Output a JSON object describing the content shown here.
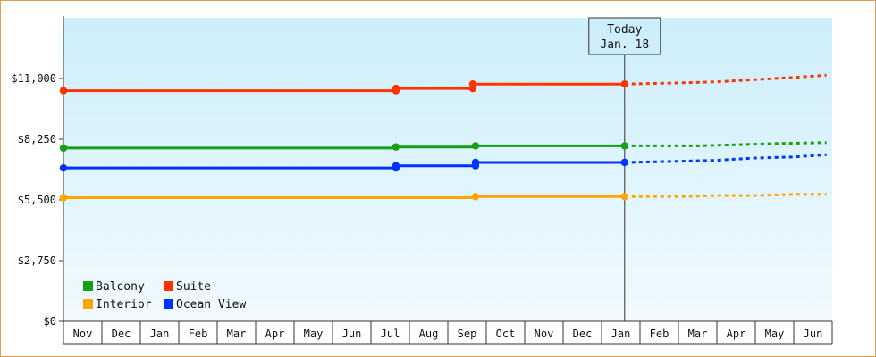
{
  "chart_data": {
    "type": "line",
    "ylim": [
      0,
      13750
    ],
    "y_ticks": [
      {
        "value": 0,
        "label": "$0"
      },
      {
        "value": 2750,
        "label": "$2,750"
      },
      {
        "value": 5500,
        "label": "$5,500"
      },
      {
        "value": 8250,
        "label": "$8,250"
      },
      {
        "value": 11000,
        "label": "$11,000"
      }
    ],
    "x_ticks": [
      "Nov",
      "Dec",
      "Jan",
      "Feb",
      "Mar",
      "Apr",
      "May",
      "Jun",
      "Jul",
      "Aug",
      "Sep",
      "Oct",
      "Nov",
      "Dec",
      "Jan",
      "Feb",
      "Mar",
      "Apr",
      "May",
      "Jun"
    ],
    "today": {
      "line1": "Today",
      "line2": "Jan. 18",
      "x": 14.6
    },
    "grid": false,
    "legend_position": "bottom-left",
    "series": [
      {
        "name": "Balcony",
        "color": "#16a016",
        "points": [
          [
            0,
            7850
          ],
          [
            8.65,
            7850
          ],
          [
            8.65,
            7900
          ],
          [
            10.72,
            7900
          ],
          [
            10.72,
            7950
          ],
          [
            14.6,
            7950
          ]
        ],
        "markers": [
          [
            0,
            7850
          ],
          [
            8.65,
            7900
          ],
          [
            10.72,
            7950
          ],
          [
            14.6,
            7950
          ]
        ],
        "forecast": [
          [
            14.6,
            7950
          ],
          [
            16.5,
            7950
          ],
          [
            17.5,
            8000
          ],
          [
            18.5,
            8050
          ],
          [
            19.85,
            8100
          ]
        ]
      },
      {
        "name": "Suite",
        "color": "#ff3300",
        "points": [
          [
            0,
            10450
          ],
          [
            8.65,
            10450
          ],
          [
            8.65,
            10550
          ],
          [
            10.65,
            10550
          ],
          [
            10.65,
            10750
          ],
          [
            14.6,
            10750
          ]
        ],
        "markers": [
          [
            0,
            10450
          ],
          [
            8.65,
            10450
          ],
          [
            8.65,
            10550
          ],
          [
            10.65,
            10550
          ],
          [
            10.65,
            10750
          ],
          [
            14.6,
            10750
          ]
        ],
        "forecast": [
          [
            14.6,
            10750
          ],
          [
            16,
            10800
          ],
          [
            17,
            10850
          ],
          [
            18,
            10950
          ],
          [
            19,
            11050
          ],
          [
            19.85,
            11150
          ]
        ]
      },
      {
        "name": "Interior",
        "color": "#ffa500",
        "points": [
          [
            0,
            5600
          ],
          [
            10.72,
            5600
          ],
          [
            10.72,
            5650
          ],
          [
            14.6,
            5650
          ]
        ],
        "markers": [
          [
            0,
            5600
          ],
          [
            10.72,
            5650
          ],
          [
            14.6,
            5650
          ]
        ],
        "forecast": [
          [
            14.6,
            5650
          ],
          [
            16,
            5650
          ],
          [
            17,
            5700
          ],
          [
            18,
            5700
          ],
          [
            19,
            5750
          ],
          [
            19.85,
            5750
          ]
        ]
      },
      {
        "name": "Ocean View",
        "color": "#0033ff",
        "points": [
          [
            0,
            6950
          ],
          [
            8.65,
            6950
          ],
          [
            8.65,
            7050
          ],
          [
            10.72,
            7050
          ],
          [
            10.72,
            7200
          ],
          [
            14.6,
            7200
          ]
        ],
        "markers": [
          [
            0,
            6950
          ],
          [
            8.65,
            6950
          ],
          [
            8.65,
            7050
          ],
          [
            10.72,
            7050
          ],
          [
            10.72,
            7200
          ],
          [
            14.6,
            7200
          ]
        ],
        "forecast": [
          [
            14.6,
            7200
          ],
          [
            16,
            7250
          ],
          [
            17,
            7300
          ],
          [
            18,
            7400
          ],
          [
            19,
            7450
          ],
          [
            19.85,
            7550
          ]
        ]
      }
    ],
    "legend": [
      {
        "name": "Balcony",
        "color": "#16a016"
      },
      {
        "name": "Suite",
        "color": "#ff3300"
      },
      {
        "name": "Interior",
        "color": "#ffa500"
      },
      {
        "name": "Ocean View",
        "color": "#0033ff"
      }
    ]
  }
}
